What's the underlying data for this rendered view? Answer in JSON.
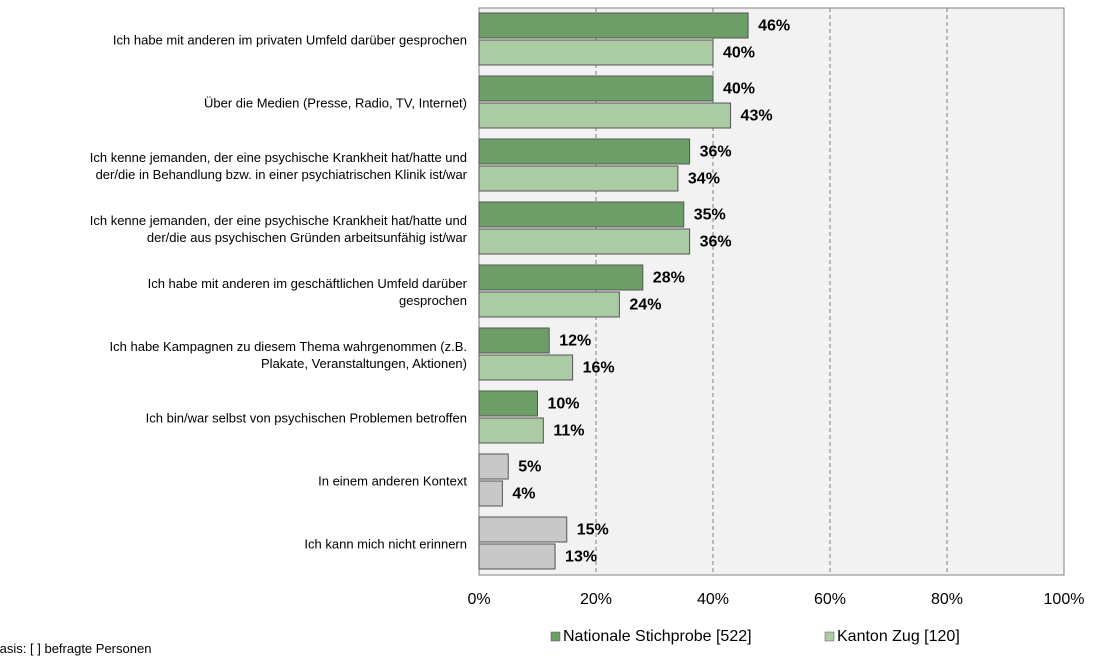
{
  "chart_data": {
    "type": "bar",
    "orientation": "horizontal",
    "categories": [
      "Ich habe mit anderen im privaten Umfeld darüber gesprochen",
      "Über die Medien (Presse, Radio, TV, Internet)",
      "Ich kenne jemanden, der eine psychische Krankheit hat/hatte und\nder/die in Behandlung bzw. in einer psychiatrischen Klinik ist/war",
      "Ich kenne jemanden, der eine psychische Krankheit hat/hatte und\nder/die aus psychischen Gründen arbeitsunfähig ist/war",
      "Ich habe mit anderen im geschäftlichen Umfeld darüber\ngesprochen",
      "Ich habe Kampagnen zu diesem Thema wahrgenommen (z.B.\nPlakate, Veranstaltungen, Aktionen)",
      "Ich bin/war selbst von psychischen Problemen betroffen",
      "In einem anderen Kontext",
      "Ich kann mich nicht erinnern"
    ],
    "series": [
      {
        "name": "Nationale Stichprobe [522]",
        "color": "#6e9e68",
        "colors": [
          "#6e9e68",
          "#6e9e68",
          "#6e9e68",
          "#6e9e68",
          "#6e9e68",
          "#6e9e68",
          "#6e9e68",
          "#c8c8c8",
          "#c8c8c8"
        ],
        "values": [
          46,
          40,
          36,
          35,
          28,
          12,
          10,
          5,
          15
        ],
        "value_labels": [
          "46%",
          "40%",
          "36%",
          "35%",
          "28%",
          "12%",
          "10%",
          "5%",
          "15%"
        ]
      },
      {
        "name": "Kanton Zug [120]",
        "color": "#abcba5",
        "colors": [
          "#abcba5",
          "#abcba5",
          "#abcba5",
          "#abcba5",
          "#abcba5",
          "#abcba5",
          "#abcba5",
          "#c8c8c8",
          "#c8c8c8"
        ],
        "values": [
          40,
          43,
          34,
          36,
          24,
          16,
          11,
          4,
          13
        ],
        "value_labels": [
          "40%",
          "43%",
          "34%",
          "36%",
          "24%",
          "16%",
          "11%",
          "4%",
          "13%"
        ]
      }
    ],
    "xlim": [
      0,
      100
    ],
    "xticks": [
      {
        "value": 0,
        "label": "0%"
      },
      {
        "value": 20,
        "label": "20%"
      },
      {
        "value": 40,
        "label": "40%"
      },
      {
        "value": 60,
        "label": "60%"
      },
      {
        "value": 80,
        "label": "80%"
      },
      {
        "value": 100,
        "label": "100%"
      }
    ],
    "grid": true,
    "legend": "bottom",
    "footnote": "Basis: [ ] befragte Personen"
  }
}
